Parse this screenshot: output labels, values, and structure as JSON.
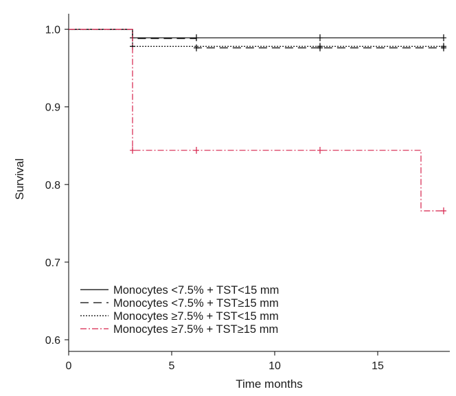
{
  "chart_data": {
    "type": "line",
    "subtype": "kaplan-meier step",
    "xlabel": "Time months",
    "ylabel": "Survival",
    "xlim": [
      0,
      18.5
    ],
    "ylim": [
      0.585,
      1.02
    ],
    "xticks": [
      0,
      5,
      10,
      15
    ],
    "yticks": [
      0.6,
      0.7,
      0.8,
      0.9,
      1.0
    ],
    "xtick_labels": [
      "0",
      "5",
      "10",
      "15"
    ],
    "ytick_labels": [
      "0.6",
      "0.7",
      "0.8",
      "0.9",
      "1.0"
    ],
    "grid": false,
    "legend_position": "bottom-left",
    "series": [
      {
        "name": "Monocytes <7.5% + TST<15 mm",
        "color": "#000000",
        "dash": "solid",
        "steps": [
          [
            0,
            1.0
          ],
          [
            3.1,
            0.989
          ],
          [
            18.2,
            0.989
          ]
        ],
        "censor": [
          [
            3.1,
            0.989
          ],
          [
            6.2,
            0.989
          ],
          [
            12.2,
            0.989
          ],
          [
            18.2,
            0.989
          ]
        ]
      },
      {
        "name": "Monocytes <7.5% + TST≥15 mm",
        "color": "#000000",
        "dash": "dashed",
        "steps": [
          [
            0,
            1.0
          ],
          [
            3.1,
            0.988
          ],
          [
            6.2,
            0.976
          ],
          [
            18.2,
            0.976
          ]
        ],
        "censor": [
          [
            6.2,
            0.976
          ],
          [
            12.2,
            0.976
          ],
          [
            18.2,
            0.976
          ]
        ]
      },
      {
        "name": "Monocytes ≥7.5% + TST<15 mm",
        "color": "#000000",
        "dash": "dotted",
        "steps": [
          [
            0,
            1.0
          ],
          [
            3.1,
            0.978
          ],
          [
            18.2,
            0.978
          ]
        ],
        "censor": [
          [
            3.1,
            0.978
          ],
          [
            12.2,
            0.978
          ],
          [
            18.2,
            0.978
          ]
        ]
      },
      {
        "name": "Monocytes ≥7.5% + TST≥15 mm",
        "color": "#d6204a",
        "dash": "dashdot",
        "steps": [
          [
            0,
            1.0
          ],
          [
            3.1,
            0.844
          ],
          [
            17.1,
            0.766
          ],
          [
            18.2,
            0.766
          ]
        ],
        "censor": [
          [
            3.1,
            0.844
          ],
          [
            6.2,
            0.844
          ],
          [
            12.2,
            0.844
          ],
          [
            18.2,
            0.766
          ]
        ]
      }
    ]
  }
}
